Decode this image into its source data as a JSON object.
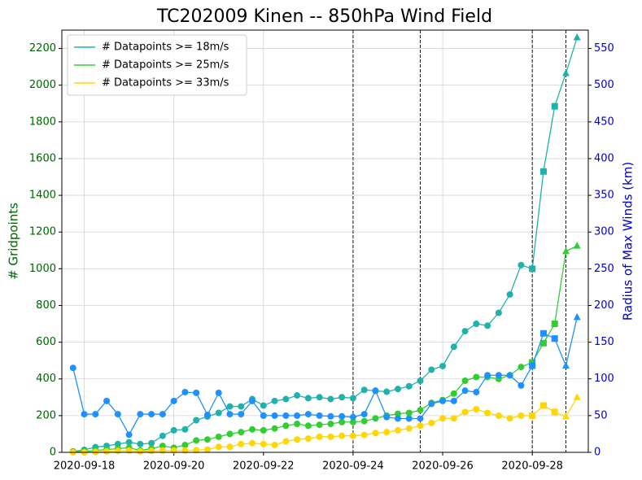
{
  "chart_data": {
    "type": "line",
    "title": "TC202009 Kinen -- 850hPa Wind Field",
    "ylabel": "# Gridpoints",
    "y2label": "Radius of Max Winds (km)",
    "y_color": "#006400",
    "y2_color": "#0000cd",
    "grid": true,
    "legend": "upper left",
    "xlim": [
      "2020-09-17T12:00",
      "2020-09-29T06:00"
    ],
    "xticks": [
      "2020-09-18",
      "2020-09-20",
      "2020-09-22",
      "2020-09-24",
      "2020-09-26",
      "2020-09-28"
    ],
    "ylim": [
      0,
      2300
    ],
    "yticks": [
      0,
      200,
      400,
      600,
      800,
      1000,
      1200,
      1400,
      1600,
      1800,
      2000,
      2200
    ],
    "y2lim": [
      0,
      575
    ],
    "y2ticks": [
      0,
      50,
      100,
      150,
      200,
      250,
      300,
      350,
      400,
      450,
      500,
      550
    ],
    "vlines": [
      "2020-09-24T00:00",
      "2020-09-25T12:00",
      "2020-09-28T00:00",
      "2020-09-28T18:00"
    ],
    "x": [
      "2020-09-17T18:00",
      "2020-09-18T00:00",
      "2020-09-18T06:00",
      "2020-09-18T12:00",
      "2020-09-18T18:00",
      "2020-09-19T00:00",
      "2020-09-19T06:00",
      "2020-09-19T12:00",
      "2020-09-19T18:00",
      "2020-09-20T00:00",
      "2020-09-20T06:00",
      "2020-09-20T12:00",
      "2020-09-20T18:00",
      "2020-09-21T00:00",
      "2020-09-21T06:00",
      "2020-09-21T12:00",
      "2020-09-21T18:00",
      "2020-09-22T00:00",
      "2020-09-22T06:00",
      "2020-09-22T12:00",
      "2020-09-22T18:00",
      "2020-09-23T00:00",
      "2020-09-23T06:00",
      "2020-09-23T12:00",
      "2020-09-23T18:00",
      "2020-09-24T00:00",
      "2020-09-24T06:00",
      "2020-09-24T12:00",
      "2020-09-24T18:00",
      "2020-09-25T00:00",
      "2020-09-25T06:00",
      "2020-09-25T12:00",
      "2020-09-25T18:00",
      "2020-09-26T00:00",
      "2020-09-26T06:00",
      "2020-09-26T12:00",
      "2020-09-26T18:00",
      "2020-09-27T00:00",
      "2020-09-27T06:00",
      "2020-09-27T12:00",
      "2020-09-27T18:00",
      "2020-09-28T00:00",
      "2020-09-28T06:00",
      "2020-09-28T12:00",
      "2020-09-28T18:00",
      "2020-09-29T00:00"
    ],
    "markers": [
      "circle",
      "circle",
      "circle",
      "circle",
      "circle",
      "circle",
      "circle",
      "circle",
      "circle",
      "circle",
      "circle",
      "circle",
      "circle",
      "circle",
      "circle",
      "circle",
      "circle",
      "circle",
      "circle",
      "circle",
      "circle",
      "circle",
      "circle",
      "circle",
      "circle",
      "circle",
      "circle",
      "circle",
      "circle",
      "circle",
      "circle",
      "circle",
      "circle",
      "circle",
      "circle",
      "circle",
      "circle",
      "circle",
      "circle",
      "circle",
      "circle",
      "square",
      "square",
      "square",
      "triangle",
      "triangle"
    ],
    "series": [
      {
        "name": "# Datapoints >= 18m/s",
        "color": "#20b2aa",
        "values": [
          5,
          14,
          28,
          35,
          45,
          55,
          45,
          50,
          90,
          120,
          125,
          175,
          195,
          215,
          250,
          250,
          290,
          255,
          280,
          290,
          310,
          295,
          300,
          290,
          300,
          295,
          340,
          335,
          330,
          345,
          360,
          390,
          450,
          470,
          575,
          660,
          700,
          690,
          760,
          860,
          1020,
          1000,
          1530,
          1885,
          2065,
          2260
        ]
      },
      {
        "name": "# Datapoints >= 25m/s",
        "color": "#32cd32",
        "values": [
          2,
          5,
          10,
          15,
          20,
          25,
          10,
          20,
          35,
          25,
          40,
          65,
          70,
          85,
          100,
          110,
          125,
          120,
          130,
          145,
          155,
          145,
          150,
          155,
          165,
          165,
          170,
          185,
          200,
          210,
          215,
          230,
          270,
          285,
          320,
          390,
          410,
          410,
          400,
          420,
          465,
          490,
          595,
          700,
          1095,
          1125
        ]
      },
      {
        "name": "# Datapoints >= 33m/s",
        "color": "#ffd700",
        "values": [
          0,
          0,
          2,
          5,
          8,
          10,
          5,
          8,
          10,
          10,
          10,
          12,
          15,
          30,
          30,
          45,
          50,
          45,
          40,
          60,
          70,
          75,
          85,
          85,
          90,
          90,
          95,
          105,
          110,
          120,
          130,
          145,
          160,
          185,
          185,
          220,
          235,
          215,
          200,
          185,
          200,
          200,
          255,
          220,
          195,
          300
        ]
      },
      {
        "color": "#1e90ff",
        "axis": "y2",
        "values": [
          115,
          52,
          52,
          70,
          52,
          24,
          52,
          52,
          52,
          70,
          82,
          81,
          51,
          81,
          52,
          52,
          70,
          50,
          50,
          50,
          50,
          52,
          50,
          49,
          49,
          48,
          52,
          84,
          48,
          46,
          46,
          46,
          66,
          70,
          70,
          84,
          82,
          105,
          105,
          105,
          91,
          118,
          162,
          155,
          118,
          184
        ]
      }
    ]
  }
}
